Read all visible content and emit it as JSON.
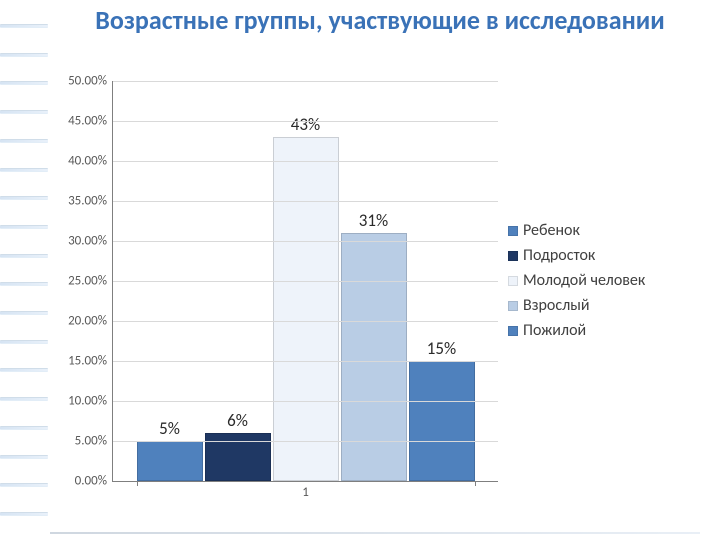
{
  "title": "Возрастные группы, участвующие в исследовании",
  "chart": {
    "type": "bar",
    "x_category_label": "1",
    "ylim": [
      0,
      50
    ],
    "ytick_step": 5,
    "ytick_format_suffix": ".00%",
    "grid_color": "#d9d9d9",
    "axis_color": "#7f7f7f",
    "background": "#ffffff",
    "label_fontsize": 13,
    "value_label_fontsize": 17,
    "series": [
      {
        "name": "Ребенок",
        "value": 5,
        "label": "5%",
        "color": "#4f81bd"
      },
      {
        "name": "Подросток",
        "value": 6,
        "label": "6%",
        "color": "#1f3864"
      },
      {
        "name": "Молодой человек",
        "value": 43,
        "label": "43%",
        "color": "#eef3fa"
      },
      {
        "name": "Взрослый",
        "value": 31,
        "label": "31%",
        "color": "#b9cde5"
      },
      {
        "name": "Пожилой",
        "value": 15,
        "label": "15%",
        "color": "#4f81bd"
      }
    ]
  },
  "decor": {
    "stripe_count": 18
  }
}
